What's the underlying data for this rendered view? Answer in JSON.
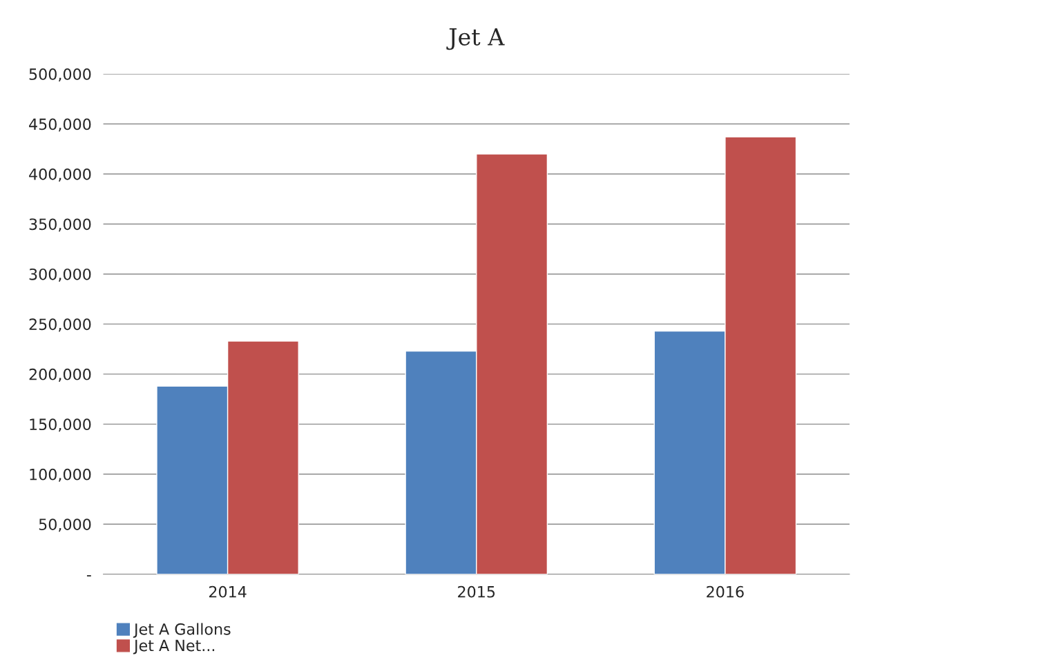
{
  "chart_data": {
    "type": "bar",
    "title": "Jet A",
    "categories": [
      "2014",
      "2015",
      "2016"
    ],
    "series": [
      {
        "name": "Jet A Gallons",
        "color": "#4f81bd",
        "values": [
          188000,
          223000,
          243000
        ]
      },
      {
        "name": "Jet A Net...",
        "color": "#c0504d",
        "values": [
          233000,
          420000,
          437000
        ]
      }
    ],
    "ylim": [
      0,
      500000
    ],
    "yticks": [
      {
        "value": 0,
        "label": "-"
      },
      {
        "value": 50000,
        "label": "50,000"
      },
      {
        "value": 100000,
        "label": "100,000"
      },
      {
        "value": 150000,
        "label": "150,000"
      },
      {
        "value": 200000,
        "label": "200,000"
      },
      {
        "value": 250000,
        "label": "250,000"
      },
      {
        "value": 300000,
        "label": "300,000"
      },
      {
        "value": 350000,
        "label": "350,000"
      },
      {
        "value": 400000,
        "label": "400,000"
      },
      {
        "value": 450000,
        "label": "450,000"
      },
      {
        "value": 500000,
        "label": "500,000"
      }
    ],
    "grid": "y",
    "legend": "bottom left"
  }
}
